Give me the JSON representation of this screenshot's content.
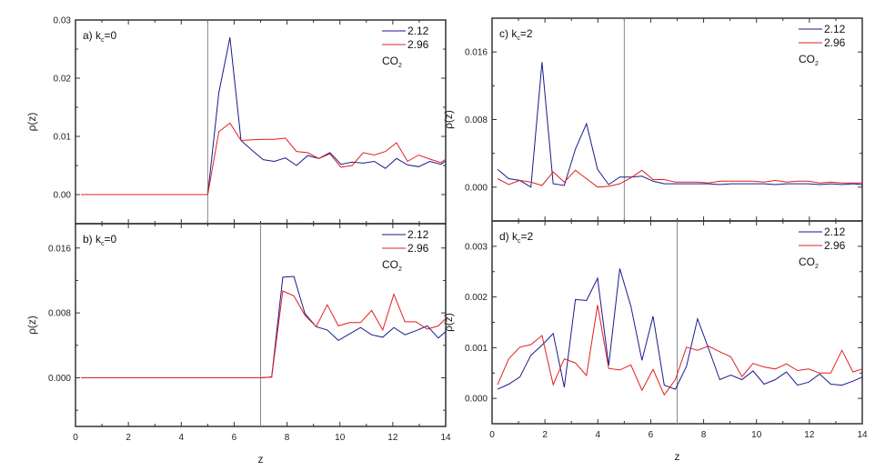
{
  "colors": {
    "series_212": "#1a1a8c",
    "series_296": "#e02020",
    "axis": "#333333",
    "divider": "#888888"
  },
  "shared": {
    "xlabel": "z",
    "ylabel": "ρ(z)",
    "xticks": [
      "0",
      "2",
      "4",
      "6",
      "8",
      "10",
      "12",
      "14"
    ]
  },
  "legend": {
    "entries": [
      "2.12",
      "2.96"
    ],
    "species": "CO",
    "species_sub": "2"
  },
  "chart_data": [
    {
      "id": "a",
      "type": "line",
      "title": "a) k_c=0",
      "label_main": "a) k",
      "label_sub": "c",
      "label_tail": "=0",
      "xlabel": "",
      "ylabel": "ρ(z)",
      "xlim": [
        0,
        14
      ],
      "ylim": [
        -0.005,
        0.03
      ],
      "yticks": [
        "0.00",
        "0.01",
        "0.02",
        "0.03"
      ],
      "yticks_values": [
        0.0,
        0.01,
        0.02,
        0.03
      ],
      "vline": 5.0,
      "legend_position": "upper right",
      "series": [
        {
          "name": "2.12",
          "x": [
            0.21,
            5.0,
            5.42,
            5.84,
            6.26,
            6.68,
            7.1,
            7.52,
            7.94,
            8.36,
            8.78,
            9.2,
            9.62,
            10.04,
            10.46,
            10.88,
            11.3,
            11.72,
            12.14,
            12.56,
            12.98,
            13.4,
            13.82,
            14.0
          ],
          "values": [
            0.0,
            0.0,
            0.0175,
            0.027,
            0.0093,
            0.0076,
            0.006,
            0.0057,
            0.0063,
            0.005,
            0.0067,
            0.0062,
            0.0072,
            0.0052,
            0.0056,
            0.0054,
            0.0057,
            0.0045,
            0.0062,
            0.0051,
            0.0048,
            0.0057,
            0.0052,
            0.0058
          ]
        },
        {
          "name": "2.96",
          "x": [
            0.21,
            5.0,
            5.42,
            5.84,
            6.26,
            6.68,
            7.1,
            7.52,
            7.94,
            8.36,
            8.78,
            9.2,
            9.62,
            10.04,
            10.46,
            10.88,
            11.3,
            11.72,
            12.14,
            12.56,
            12.98,
            13.4,
            13.82,
            14.0
          ],
          "values": [
            0.0,
            0.0,
            0.0108,
            0.0123,
            0.0093,
            0.0094,
            0.0095,
            0.0095,
            0.0097,
            0.0074,
            0.0072,
            0.0062,
            0.007,
            0.0047,
            0.005,
            0.0072,
            0.0068,
            0.0074,
            0.0089,
            0.0057,
            0.0068,
            0.0061,
            0.0055,
            0.0061
          ]
        }
      ]
    },
    {
      "id": "b",
      "type": "line",
      "title": "b) k_c=0",
      "label_main": "b) k",
      "label_sub": "c",
      "label_tail": "=0",
      "xlabel": "z",
      "ylabel": "ρ(z)",
      "xlim": [
        0,
        14
      ],
      "ylim": [
        -0.006,
        0.019
      ],
      "yticks": [
        "0.000",
        "0.008",
        "0.016"
      ],
      "yticks_values": [
        0.0,
        0.008,
        0.016
      ],
      "vline": 7.0,
      "legend_position": "upper right",
      "series": [
        {
          "name": "2.12",
          "x": [
            0.21,
            7.0,
            7.42,
            7.84,
            8.26,
            8.68,
            9.1,
            9.52,
            9.94,
            10.36,
            10.78,
            11.2,
            11.62,
            12.04,
            12.46,
            12.88,
            13.3,
            13.72,
            14.0
          ],
          "values": [
            0.0,
            0.0,
            0.0001,
            0.0124,
            0.0125,
            0.0079,
            0.0063,
            0.0059,
            0.0046,
            0.0054,
            0.0062,
            0.0053,
            0.005,
            0.0062,
            0.0053,
            0.0058,
            0.0064,
            0.0049,
            0.0057
          ]
        },
        {
          "name": "2.96",
          "x": [
            0.21,
            7.0,
            7.42,
            7.84,
            8.26,
            8.68,
            9.1,
            9.52,
            9.94,
            10.36,
            10.78,
            11.2,
            11.62,
            12.04,
            12.46,
            12.88,
            13.3,
            13.72,
            14.0
          ],
          "values": [
            0.0,
            0.0,
            0.0001,
            0.0107,
            0.0101,
            0.0077,
            0.0063,
            0.009,
            0.0064,
            0.0068,
            0.0068,
            0.0083,
            0.0059,
            0.0103,
            0.0069,
            0.0069,
            0.006,
            0.0064,
            0.0073
          ]
        }
      ]
    },
    {
      "id": "c",
      "type": "line",
      "title": "c) k_c=2",
      "label_main": "c) k",
      "label_sub": "c",
      "label_tail": "=2",
      "xlabel": "",
      "ylabel": "ρ(z)",
      "xlim": [
        0,
        14
      ],
      "ylim": [
        -0.004,
        0.02
      ],
      "yticks": [
        "0.000",
        "0.008",
        "0.016"
      ],
      "yticks_values": [
        0.0,
        0.008,
        0.016
      ],
      "vline": 5.0,
      "legend_position": "upper right",
      "series": [
        {
          "name": "2.12",
          "x": [
            0.21,
            0.63,
            1.05,
            1.47,
            1.89,
            2.31,
            2.73,
            3.15,
            3.57,
            3.99,
            4.41,
            4.83,
            5.25,
            5.67,
            6.09,
            6.51,
            6.93,
            7.35,
            7.77,
            8.19,
            8.61,
            9.03,
            9.45,
            9.87,
            10.29,
            10.71,
            11.13,
            11.55,
            11.97,
            12.39,
            12.81,
            13.23,
            13.65,
            14.0
          ],
          "values": [
            0.0021,
            0.001,
            0.0008,
            0.0,
            0.0148,
            0.0004,
            0.0002,
            0.0045,
            0.0075,
            0.0021,
            0.0003,
            0.0012,
            0.0012,
            0.0013,
            0.0007,
            0.0004,
            0.0004,
            0.0004,
            0.0004,
            0.0004,
            0.0003,
            0.0004,
            0.0004,
            0.0004,
            0.0004,
            0.0003,
            0.0004,
            0.0004,
            0.0004,
            0.0003,
            0.0004,
            0.0003,
            0.0004,
            0.0003
          ]
        },
        {
          "name": "2.96",
          "x": [
            0.21,
            0.63,
            1.05,
            1.47,
            1.89,
            2.31,
            2.73,
            3.15,
            3.57,
            3.99,
            4.41,
            4.83,
            5.25,
            5.67,
            6.09,
            6.51,
            6.93,
            7.35,
            7.77,
            8.19,
            8.61,
            9.03,
            9.45,
            9.87,
            10.29,
            10.71,
            11.13,
            11.55,
            11.97,
            12.39,
            12.81,
            13.23,
            13.65,
            14.0
          ],
          "values": [
            0.001,
            0.0003,
            0.0008,
            0.0006,
            0.0002,
            0.0018,
            0.0006,
            0.002,
            0.001,
            0.0,
            0.0001,
            0.0004,
            0.0011,
            0.002,
            0.0009,
            0.0009,
            0.0006,
            0.0006,
            0.0006,
            0.0005,
            0.0007,
            0.0007,
            0.0007,
            0.0007,
            0.0006,
            0.0008,
            0.0006,
            0.0007,
            0.0007,
            0.0005,
            0.0006,
            0.0005,
            0.0005,
            0.0005
          ]
        }
      ]
    },
    {
      "id": "d",
      "type": "line",
      "title": "d) k_c=2",
      "label_main": "d) k",
      "label_sub": "c",
      "label_tail": "=2",
      "xlabel": "z",
      "ylabel": "ρ(z)",
      "xlim": [
        0,
        14
      ],
      "ylim": [
        -0.0005,
        0.0035
      ],
      "yticks": [
        "0.000",
        "0.001",
        "0.002",
        "0.003"
      ],
      "yticks_values": [
        0.0,
        0.001,
        0.002,
        0.003
      ],
      "vline": 7.0,
      "legend_position": "upper right",
      "series": [
        {
          "name": "2.12",
          "x": [
            0.21,
            0.63,
            1.05,
            1.47,
            1.89,
            2.31,
            2.73,
            3.15,
            3.57,
            3.99,
            4.41,
            4.83,
            5.25,
            5.67,
            6.09,
            6.51,
            6.93,
            7.35,
            7.77,
            8.19,
            8.61,
            9.03,
            9.45,
            9.87,
            10.29,
            10.71,
            11.13,
            11.55,
            11.97,
            12.39,
            12.81,
            13.23,
            13.65,
            14.0
          ],
          "values": [
            0.00018,
            0.00028,
            0.00042,
            0.00085,
            0.00105,
            0.00128,
            0.00022,
            0.00195,
            0.00193,
            0.00237,
            0.00065,
            0.00256,
            0.00182,
            0.00075,
            0.00162,
            0.00026,
            0.00018,
            0.00063,
            0.00157,
            0.00098,
            0.00037,
            0.00046,
            0.00037,
            0.00054,
            0.00028,
            0.00037,
            0.00052,
            0.00026,
            0.00032,
            0.00048,
            0.00028,
            0.00026,
            0.00034,
            0.00042
          ]
        },
        {
          "name": "2.96",
          "x": [
            0.21,
            0.63,
            1.05,
            1.47,
            1.89,
            2.31,
            2.73,
            3.15,
            3.57,
            3.99,
            4.41,
            4.83,
            5.25,
            5.67,
            6.09,
            6.51,
            6.93,
            7.35,
            7.77,
            8.19,
            8.61,
            9.03,
            9.45,
            9.87,
            10.29,
            10.71,
            11.13,
            11.55,
            11.97,
            12.39,
            12.81,
            13.23,
            13.65,
            14.0
          ],
          "values": [
            0.00027,
            0.00078,
            0.00101,
            0.00106,
            0.00124,
            0.00027,
            0.00078,
            0.0007,
            0.00045,
            0.00184,
            0.00059,
            0.00056,
            0.00066,
            0.00016,
            0.00057,
            7e-05,
            0.00037,
            0.00101,
            0.00095,
            0.00103,
            0.00092,
            0.00082,
            0.00043,
            0.00069,
            0.00062,
            0.00058,
            0.00068,
            0.00055,
            0.00058,
            0.0005,
            0.0005,
            0.00095,
            0.00052,
            0.00058
          ]
        }
      ]
    }
  ]
}
